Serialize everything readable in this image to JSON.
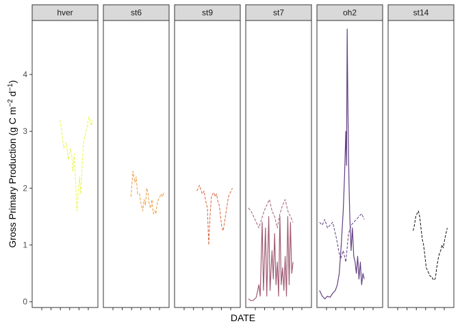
{
  "chart_data": {
    "type": "line",
    "xlabel": "DATE",
    "ylabel_parts": {
      "main": "Gross Primary Production (g C m",
      "exp1": "−2",
      "mid": " d",
      "exp2": "−1",
      "close": ")"
    },
    "ylim": [
      -0.1,
      4.95
    ],
    "y_ticks": [
      0,
      1,
      2,
      3,
      4
    ],
    "y_tick_labels": [
      "0",
      "1",
      "2",
      "3",
      "4"
    ],
    "x_tick_count": 6,
    "grid": false,
    "legend": "none",
    "panels": [
      {
        "name": "hver",
        "color": "#e8f542",
        "series": [
          {
            "style": "dashed",
            "x": [
              0.42,
              0.45,
              0.48,
              0.52,
              0.55,
              0.58,
              0.6,
              0.62,
              0.64,
              0.66,
              0.68,
              0.7,
              0.72,
              0.74,
              0.76,
              0.78,
              0.8,
              0.82,
              0.84,
              0.86,
              0.88,
              0.9,
              0.92
            ],
            "y": [
              3.2,
              3.0,
              2.7,
              2.8,
              2.5,
              2.7,
              2.6,
              2.3,
              2.6,
              2.1,
              1.6,
              1.9,
              2.2,
              1.9,
              2.4,
              2.8,
              2.9,
              3.0,
              3.1,
              3.25,
              3.2,
              3.1,
              3.2
            ]
          }
        ]
      },
      {
        "name": "st6",
        "color": "#ea9a3c",
        "series": [
          {
            "style": "dashed",
            "x": [
              0.42,
              0.45,
              0.48,
              0.5,
              0.52,
              0.55,
              0.57,
              0.6,
              0.62,
              0.64,
              0.66,
              0.68,
              0.7,
              0.72,
              0.74,
              0.76,
              0.78,
              0.8,
              0.82,
              0.84,
              0.86,
              0.88,
              0.9,
              0.92
            ],
            "y": [
              1.85,
              2.3,
              2.1,
              2.2,
              1.9,
              1.9,
              1.75,
              1.6,
              1.8,
              1.7,
              2.0,
              1.9,
              1.7,
              1.65,
              1.8,
              1.55,
              1.6,
              1.55,
              1.75,
              1.8,
              1.85,
              1.9,
              1.85,
              1.92
            ]
          }
        ]
      },
      {
        "name": "st9",
        "color": "#d9623b",
        "series": [
          {
            "style": "dashed",
            "x": [
              0.34,
              0.38,
              0.42,
              0.45,
              0.47,
              0.5,
              0.52,
              0.54,
              0.56,
              0.58,
              0.6,
              0.62,
              0.64,
              0.66,
              0.68,
              0.7,
              0.72,
              0.74,
              0.76,
              0.78,
              0.8,
              0.82,
              0.84,
              0.86,
              0.88
            ],
            "y": [
              1.95,
              2.05,
              1.9,
              1.95,
              1.8,
              1.65,
              1.0,
              1.5,
              1.85,
              1.9,
              1.92,
              1.85,
              1.9,
              1.75,
              1.7,
              1.5,
              1.3,
              1.25,
              1.4,
              1.55,
              1.7,
              1.85,
              1.9,
              1.95,
              2.0
            ]
          }
        ]
      },
      {
        "name": "st7",
        "color": "#a15c75",
        "series": [
          {
            "style": "dashed",
            "x": [
              0.04,
              0.08,
              0.12,
              0.16,
              0.2,
              0.24,
              0.28,
              0.32,
              0.36,
              0.4,
              0.44,
              0.48,
              0.52,
              0.56,
              0.6,
              0.64,
              0.68,
              0.72
            ],
            "y": [
              1.65,
              1.6,
              1.5,
              1.4,
              1.3,
              1.45,
              1.6,
              1.7,
              1.8,
              1.6,
              1.5,
              1.3,
              1.55,
              1.7,
              1.8,
              1.6,
              1.5,
              1.4
            ]
          },
          {
            "style": "solid",
            "x": [
              0.04,
              0.08,
              0.12,
              0.16,
              0.2,
              0.22,
              0.25,
              0.27,
              0.3,
              0.32,
              0.35,
              0.37,
              0.4,
              0.42,
              0.44,
              0.46,
              0.48,
              0.5,
              0.52,
              0.54,
              0.56,
              0.58,
              0.6,
              0.62,
              0.64,
              0.66,
              0.68,
              0.7,
              0.72
            ],
            "y": [
              0.05,
              0.02,
              0.03,
              0.08,
              0.3,
              0.1,
              1.4,
              0.2,
              1.3,
              0.1,
              1.5,
              0.2,
              0.9,
              0.4,
              1.2,
              0.3,
              0.7,
              0.1,
              1.5,
              0.3,
              0.6,
              0.2,
              0.8,
              0.1,
              1.5,
              0.3,
              1.4,
              0.5,
              0.7
            ]
          }
        ]
      },
      {
        "name": "oh2",
        "color": "#613f82",
        "series": [
          {
            "style": "dashed",
            "x": [
              0.04,
              0.08,
              0.12,
              0.16,
              0.2,
              0.24,
              0.28,
              0.3,
              0.33,
              0.36,
              0.4,
              0.44,
              0.48,
              0.52,
              0.56,
              0.6,
              0.64,
              0.68,
              0.72
            ],
            "y": [
              1.4,
              1.35,
              1.45,
              1.3,
              1.35,
              1.4,
              1.2,
              1.1,
              0.9,
              0.75,
              0.9,
              0.7,
              1.2,
              1.35,
              1.4,
              1.45,
              1.5,
              1.55,
              1.45
            ]
          },
          {
            "style": "solid",
            "x": [
              0.04,
              0.08,
              0.12,
              0.16,
              0.2,
              0.24,
              0.28,
              0.31,
              0.34,
              0.37,
              0.4,
              0.42,
              0.44,
              0.45,
              0.46,
              0.47,
              0.48,
              0.49,
              0.5,
              0.51,
              0.52,
              0.54,
              0.56,
              0.58,
              0.6,
              0.62,
              0.64,
              0.66,
              0.68,
              0.7,
              0.72
            ],
            "y": [
              0.2,
              0.1,
              0.05,
              0.1,
              0.08,
              0.15,
              0.2,
              0.3,
              0.5,
              1.0,
              1.6,
              2.2,
              3.0,
              2.4,
              4.8,
              3.6,
              2.6,
              2.0,
              1.5,
              1.2,
              0.9,
              1.3,
              0.8,
              0.7,
              0.5,
              0.8,
              0.4,
              0.7,
              0.3,
              0.5,
              0.4
            ]
          }
        ]
      },
      {
        "name": "st14",
        "color": "#0d0d0d",
        "series": [
          {
            "style": "dashed",
            "x": [
              0.38,
              0.4,
              0.42,
              0.44,
              0.46,
              0.48,
              0.5,
              0.52,
              0.54,
              0.56,
              0.58,
              0.6,
              0.62,
              0.64,
              0.66,
              0.68,
              0.7,
              0.72,
              0.74,
              0.76,
              0.78,
              0.8,
              0.82,
              0.84,
              0.86,
              0.88,
              0.9
            ],
            "y": [
              1.25,
              1.35,
              1.5,
              1.55,
              1.6,
              1.5,
              1.3,
              1.1,
              1.0,
              0.8,
              0.6,
              0.55,
              0.5,
              0.45,
              0.45,
              0.4,
              0.38,
              0.42,
              0.6,
              0.75,
              0.85,
              0.9,
              1.0,
              0.95,
              1.1,
              1.2,
              1.3
            ]
          }
        ]
      }
    ]
  }
}
